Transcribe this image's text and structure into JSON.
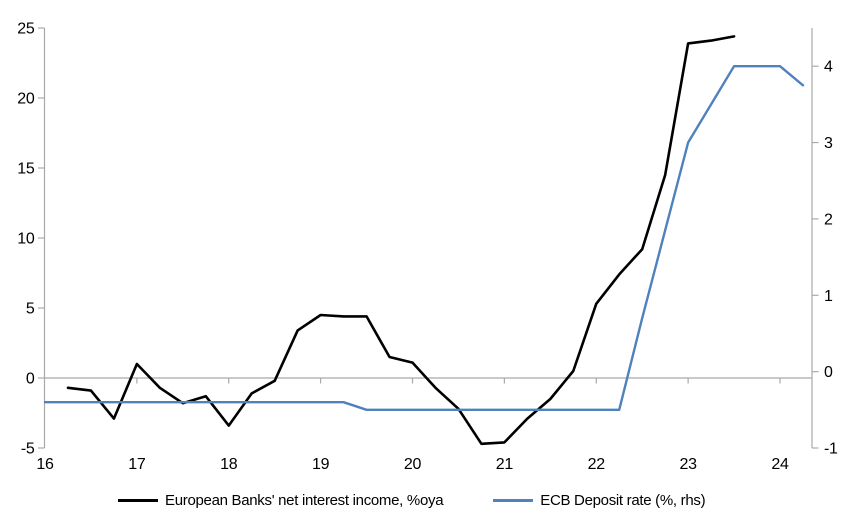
{
  "chart_data": {
    "type": "line",
    "title": "",
    "x_axis": {
      "min": 16,
      "max": 24.35,
      "ticks": [
        16,
        17,
        18,
        19,
        20,
        21,
        22,
        23,
        24
      ]
    },
    "left_axis": {
      "min": -5,
      "max": 25,
      "ticks": [
        25,
        20,
        15,
        10,
        5,
        0,
        -5
      ]
    },
    "right_axis": {
      "min": -1,
      "max": 4.5,
      "ticks": [
        4,
        3,
        2,
        1,
        0,
        -1
      ]
    },
    "grid": "zero-line-only",
    "legend_position": "bottom",
    "colors": {
      "axis": "#A9A9A9",
      "gridline": "#A9A9A9",
      "background": "#FFFFFF",
      "text": "#000000",
      "series_black": "#000000",
      "series_blue": "#4F81BD"
    },
    "series": [
      {
        "name": "European Banks' net interest income, %oya",
        "axis": "left",
        "color": "#000000",
        "x": [
          16.25,
          16.5,
          16.75,
          17.0,
          17.25,
          17.5,
          17.75,
          18.0,
          18.25,
          18.5,
          18.75,
          19.0,
          19.25,
          19.5,
          19.75,
          20.0,
          20.25,
          20.5,
          20.75,
          21.0,
          21.25,
          21.5,
          21.75,
          22.0,
          22.25,
          22.5,
          22.75,
          23.0,
          23.25,
          23.5
        ],
        "values": [
          -0.7,
          -0.9,
          -2.9,
          1.0,
          -0.7,
          -1.8,
          -1.3,
          -3.4,
          -1.1,
          -0.2,
          3.4,
          4.5,
          4.4,
          4.4,
          1.5,
          1.1,
          -0.7,
          -2.2,
          -4.7,
          -4.6,
          -2.9,
          -1.5,
          0.5,
          5.3,
          7.4,
          9.2,
          14.5,
          23.9,
          24.1,
          24.4
        ]
      },
      {
        "name": "ECB Deposit rate (%, rhs)",
        "axis": "right",
        "color": "#4F81BD",
        "x": [
          16.0,
          16.25,
          16.5,
          16.75,
          17.0,
          17.25,
          17.5,
          17.75,
          18.0,
          18.25,
          18.5,
          18.75,
          19.0,
          19.25,
          19.5,
          19.75,
          20.0,
          20.25,
          20.5,
          20.75,
          21.0,
          21.25,
          21.5,
          21.75,
          22.0,
          22.25,
          22.5,
          22.75,
          23.0,
          23.25,
          23.5,
          23.75,
          24.0,
          24.25
        ],
        "values": [
          -0.4,
          -0.4,
          -0.4,
          -0.4,
          -0.4,
          -0.4,
          -0.4,
          -0.4,
          -0.4,
          -0.4,
          -0.4,
          -0.4,
          -0.4,
          -0.4,
          -0.5,
          -0.5,
          -0.5,
          -0.5,
          -0.5,
          -0.5,
          -0.5,
          -0.5,
          -0.5,
          -0.5,
          -0.5,
          -0.5,
          0.7,
          1.85,
          3.0,
          3.5,
          4.0,
          4.0,
          4.0,
          3.75
        ]
      }
    ]
  }
}
